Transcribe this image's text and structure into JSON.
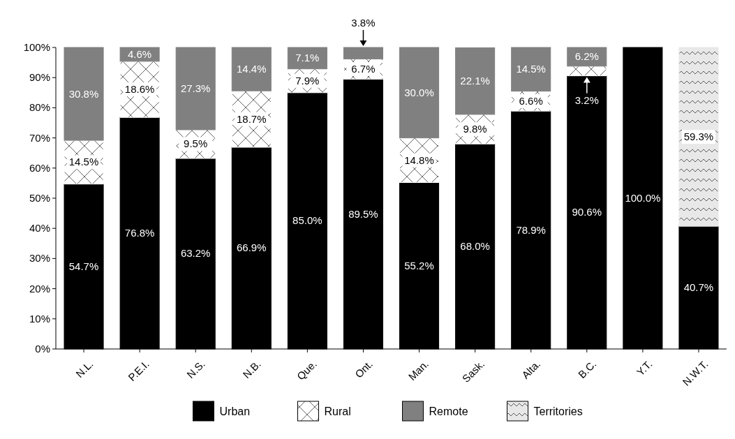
{
  "chart_data": {
    "type": "bar",
    "stacked": true,
    "categories": [
      "N.L.",
      "P.E.I.",
      "N.S.",
      "N.B.",
      "Que.",
      "Ont.",
      "Man.",
      "Sask.",
      "Alta.",
      "B.C.",
      "Y.T.",
      "N.W.T."
    ],
    "series": [
      {
        "name": "Urban",
        "color": "#000000",
        "values": [
          54.7,
          76.8,
          63.2,
          66.9,
          85.0,
          89.5,
          55.2,
          68.0,
          78.9,
          90.6,
          100.0,
          40.7
        ],
        "value_labels": [
          "54.7%",
          "76.8%",
          "63.2%",
          "66.9%",
          "85.0%",
          "89.5%",
          "55.2%",
          "68.0%",
          "78.9%",
          "90.6%",
          "100.0%",
          "40.7%"
        ]
      },
      {
        "name": "Rural",
        "color": "#ffffff",
        "values": [
          14.5,
          18.6,
          9.5,
          18.7,
          7.9,
          6.7,
          14.8,
          9.8,
          6.6,
          3.2,
          null,
          null
        ],
        "value_labels": [
          "14.5%",
          "18.6%",
          "9.5%",
          "18.7%",
          "7.9%",
          "6.7%",
          "14.8%",
          "9.8%",
          "6.6%",
          "3.2%",
          null,
          null
        ]
      },
      {
        "name": "Remote",
        "color": "#808080",
        "values": [
          30.8,
          4.6,
          27.3,
          14.4,
          7.1,
          3.8,
          30.0,
          22.1,
          14.5,
          6.2,
          null,
          null
        ],
        "value_labels": [
          "30.8%",
          "4.6%",
          "27.3%",
          "14.4%",
          "7.1%",
          "3.8%",
          "30.0%",
          "22.1%",
          "14.5%",
          "6.2%",
          null,
          null
        ]
      },
      {
        "name": "Territories",
        "color": "#e8e8e8",
        "values": [
          null,
          null,
          null,
          null,
          null,
          null,
          null,
          null,
          null,
          null,
          null,
          59.3
        ],
        "value_labels": [
          null,
          null,
          null,
          null,
          null,
          null,
          null,
          null,
          null,
          null,
          null,
          "59.3%"
        ]
      }
    ],
    "ylim": [
      0,
      100
    ],
    "yticks": [
      {
        "value": 0,
        "label": "0%"
      },
      {
        "value": 10,
        "label": "10%"
      },
      {
        "value": 20,
        "label": "20%"
      },
      {
        "value": 30,
        "label": "30%"
      },
      {
        "value": 40,
        "label": "40%"
      },
      {
        "value": 50,
        "label": "50%"
      },
      {
        "value": 60,
        "label": "60%"
      },
      {
        "value": 70,
        "label": "70%"
      },
      {
        "value": 80,
        "label": "80%"
      },
      {
        "value": 90,
        "label": "90%"
      },
      {
        "value": 100,
        "label": "100%"
      }
    ],
    "grid": false,
    "legend": "bottom"
  }
}
